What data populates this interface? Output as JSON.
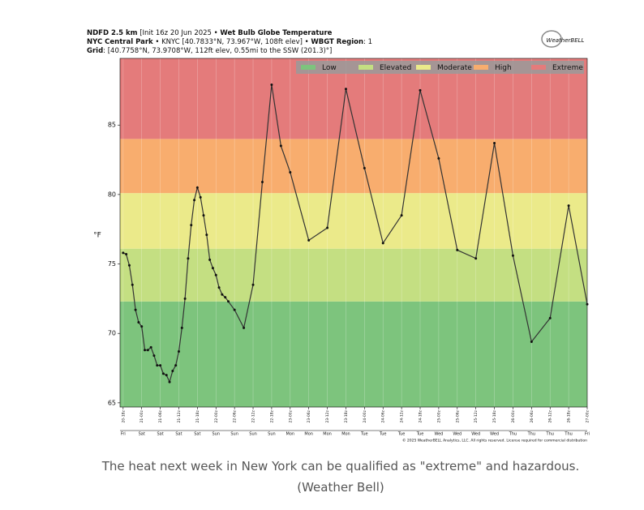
{
  "header": [
    [
      {
        "text": "NDFD 2.5 km",
        "bold": true
      },
      {
        "text": " [Init 16z 20 Jun 2025 • ",
        "bold": false
      },
      {
        "text": "Wet Bulb Globe Temperature",
        "bold": true
      }
    ],
    [
      {
        "text": "NYC Central Park",
        "bold": true
      },
      {
        "text": " • KNYC [40.7833°N, 73.967°W, 108ft elev] • ",
        "bold": false
      },
      {
        "text": "WBGT Region",
        "bold": true
      },
      {
        "text": ": 1",
        "bold": false
      }
    ],
    [
      {
        "text": "Grid",
        "bold": true
      },
      {
        "text": ": [40.7758°N, 73.9708°W, 112ft elev, 0.55mi to the SSW (201.3)°]",
        "bold": false
      }
    ]
  ],
  "logo": "WeatherBELL",
  "copyright": "© 2025 WeatherBELL Analytics, LLC. All rights reserved. License required for commercial distribution",
  "caption": "The heat next week in New York can be qualified as \"extreme\" and hazardous. (Weather Bell)",
  "chart_data": {
    "type": "line",
    "ylabel": "°F",
    "ylim": [
      64.7,
      89.8
    ],
    "yticks": [
      65,
      70,
      75,
      80,
      85
    ],
    "xlim": [
      -1,
      150
    ],
    "xticks": [
      {
        "value": 0,
        "label": "20-18z"
      },
      {
        "value": 6,
        "label": "21-00z"
      },
      {
        "value": 12,
        "label": "21-06z"
      },
      {
        "value": 18,
        "label": "21-12z"
      },
      {
        "value": 24,
        "label": "21-18z"
      },
      {
        "value": 30,
        "label": "22-00z"
      },
      {
        "value": 36,
        "label": "22-06z"
      },
      {
        "value": 42,
        "label": "22-12z"
      },
      {
        "value": 48,
        "label": "22-18z"
      },
      {
        "value": 54,
        "label": "23-00z"
      },
      {
        "value": 60,
        "label": "23-06z"
      },
      {
        "value": 66,
        "label": "23-12z"
      },
      {
        "value": 72,
        "label": "23-18z"
      },
      {
        "value": 78,
        "label": "24-00z"
      },
      {
        "value": 84,
        "label": "24-06z"
      },
      {
        "value": 90,
        "label": "24-12z"
      },
      {
        "value": 96,
        "label": "24-18z"
      },
      {
        "value": 102,
        "label": "25-00z"
      },
      {
        "value": 108,
        "label": "25-06z"
      },
      {
        "value": 114,
        "label": "25-12z"
      },
      {
        "value": 120,
        "label": "25-18z"
      },
      {
        "value": 126,
        "label": "26-00z"
      },
      {
        "value": 132,
        "label": "26-06z"
      },
      {
        "value": 138,
        "label": "26-12z"
      },
      {
        "value": 144,
        "label": "26-18z"
      },
      {
        "value": 150,
        "label": "27-00z"
      }
    ],
    "day_labels": [
      "Fri",
      "Sat",
      "Sat",
      "Sat",
      "Sat",
      "Sun",
      "Sun",
      "Sun",
      "Sun",
      "Mon",
      "Mon",
      "Mon",
      "Mon",
      "Tue",
      "Tue",
      "Tue",
      "Tue",
      "Wed",
      "Wed",
      "Wed",
      "Wed",
      "Thu",
      "Thu",
      "Thu",
      "Thu",
      "Fri"
    ],
    "bands": [
      {
        "name": "Low",
        "color": "#7dc47d",
        "from": 64.7,
        "to": 72.3
      },
      {
        "name": "Elevated",
        "color": "#c4df82",
        "from": 72.3,
        "to": 76.1
      },
      {
        "name": "Moderate",
        "color": "#ebea8a",
        "from": 76.1,
        "to": 80.1
      },
      {
        "name": "High",
        "color": "#f8ad6e",
        "from": 80.1,
        "to": 84.0
      },
      {
        "name": "Extreme",
        "color": "#e47b7b",
        "from": 84.0,
        "to": 89.8
      }
    ],
    "legend": "upper right",
    "color": "#333333",
    "x": [
      0,
      1,
      2,
      3,
      4,
      5,
      6,
      7,
      8,
      9,
      10,
      11,
      12,
      13,
      14,
      15,
      16,
      17,
      18,
      19,
      20,
      21,
      22,
      23,
      24,
      25,
      26,
      27,
      28,
      29,
      30,
      31,
      32,
      33,
      34,
      36,
      39,
      42,
      45,
      48,
      51,
      54,
      60,
      66,
      72,
      78,
      84,
      90,
      96,
      102,
      108,
      114,
      120,
      126,
      132,
      138,
      144,
      150
    ],
    "values": [
      75.8,
      75.7,
      74.9,
      73.5,
      71.7,
      70.8,
      70.5,
      68.8,
      68.8,
      69.0,
      68.4,
      67.7,
      67.7,
      67.1,
      67.0,
      66.5,
      67.3,
      67.7,
      68.7,
      70.4,
      72.5,
      75.4,
      77.8,
      79.6,
      80.5,
      79.8,
      78.5,
      77.1,
      75.3,
      74.7,
      74.2,
      73.3,
      72.8,
      72.6,
      72.3,
      71.7,
      70.4,
      73.5,
      80.9,
      87.9,
      83.5,
      81.6,
      76.7,
      77.6,
      87.6,
      81.9,
      76.5,
      78.5,
      87.5,
      82.6,
      76.0,
      75.4,
      83.7,
      75.6,
      69.4,
      71.1,
      79.2,
      72.1
    ]
  }
}
